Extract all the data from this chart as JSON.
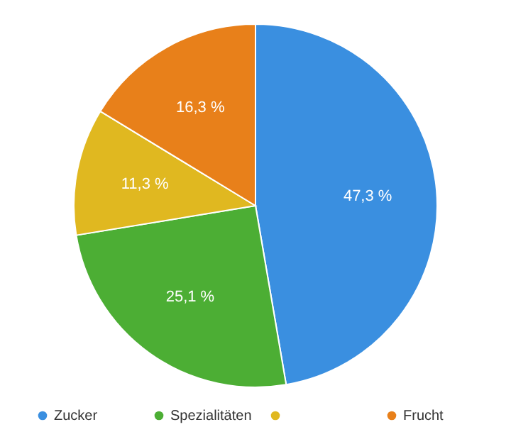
{
  "chart_data": {
    "type": "pie",
    "categories": [
      "Zucker",
      "Spezialitäten",
      null,
      "Frucht"
    ],
    "values": [
      47.3,
      25.1,
      11.3,
      16.3
    ],
    "colors": [
      "#3a8fe0",
      "#4cae34",
      "#e0b820",
      "#e8801a"
    ],
    "value_labels": [
      "47,3 %",
      "25,1 %",
      "11,3 %",
      "16,3 %"
    ],
    "legend": "bottom"
  }
}
